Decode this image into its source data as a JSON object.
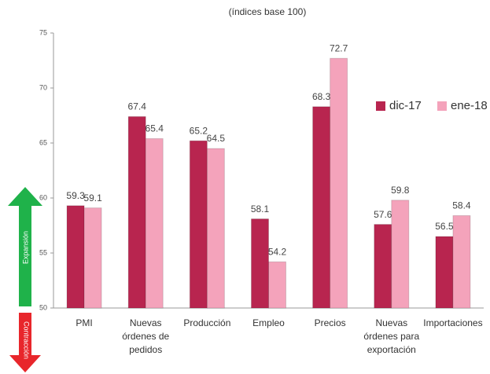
{
  "chart_data": {
    "type": "bar",
    "title": "(índices base 100)",
    "categories": [
      "PMI",
      "Nuevas órdenes de pedidos",
      "Producción",
      "Empleo",
      "Precios",
      "Nuevas órdenes para exportación",
      "Importaciones"
    ],
    "series": [
      {
        "name": "dic-17",
        "color": "#b8254f",
        "values": [
          59.3,
          67.4,
          65.2,
          58.1,
          68.3,
          57.6,
          56.5
        ]
      },
      {
        "name": "ene-18",
        "color": "#f4a3bb",
        "values": [
          59.1,
          65.4,
          64.5,
          54.2,
          72.7,
          59.8,
          58.4
        ]
      }
    ],
    "ylim": [
      50,
      75
    ],
    "yticks": [
      50,
      55,
      60,
      65,
      70,
      75
    ],
    "legend": "upper right",
    "annotations": [
      "Expansión",
      "Contracción"
    ]
  }
}
